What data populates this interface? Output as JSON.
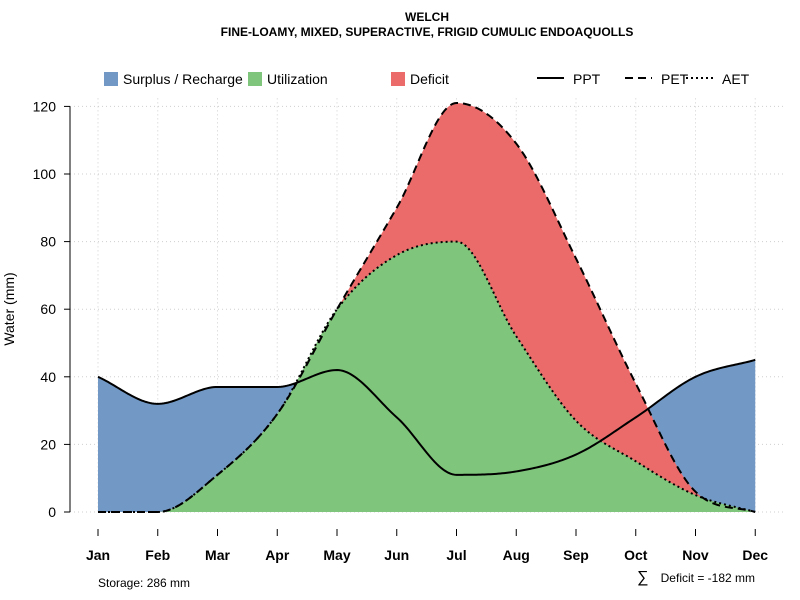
{
  "chart_data": {
    "type": "area",
    "title": "WELCH",
    "subtitle": "FINE-LOAMY, MIXED, SUPERACTIVE, FRIGID CUMULIC ENDOAQUOLLS",
    "ylabel": "Water (mm)",
    "xlabel": "",
    "ylim": [
      0,
      120
    ],
    "yticks": [
      0,
      20,
      40,
      60,
      80,
      100,
      120
    ],
    "categories": [
      "Jan",
      "Feb",
      "Mar",
      "Apr",
      "May",
      "Jun",
      "Jul",
      "Aug",
      "Sep",
      "Oct",
      "Nov",
      "Dec"
    ],
    "grid": true,
    "legend_position": "top",
    "series": [
      {
        "name": "PPT",
        "style": "solid",
        "values": [
          40,
          32,
          37,
          37,
          42,
          28,
          11,
          12,
          17,
          28,
          40,
          45
        ]
      },
      {
        "name": "PET",
        "style": "dashed",
        "values": [
          0,
          0,
          11,
          29,
          60,
          90,
          121,
          109,
          75,
          38,
          6,
          0
        ]
      },
      {
        "name": "AET",
        "style": "dotted",
        "values": [
          0,
          0,
          11,
          29,
          60,
          76,
          80,
          52,
          27,
          15,
          5,
          0
        ]
      }
    ],
    "areas": [
      {
        "name": "Surplus / Recharge",
        "color": "#7299C6"
      },
      {
        "name": "Utilization",
        "color": "#80C57C"
      },
      {
        "name": "Deficit",
        "color": "#EB6B6B"
      }
    ],
    "legend_lines": [
      {
        "name": "PPT",
        "style": "solid"
      },
      {
        "name": "PET",
        "style": "dashed"
      },
      {
        "name": "AET",
        "style": "dotted"
      }
    ],
    "storage_text": "Storage: 286 mm",
    "deficit_symbol": "∑",
    "deficit_text": "Deficit = -182 mm"
  }
}
